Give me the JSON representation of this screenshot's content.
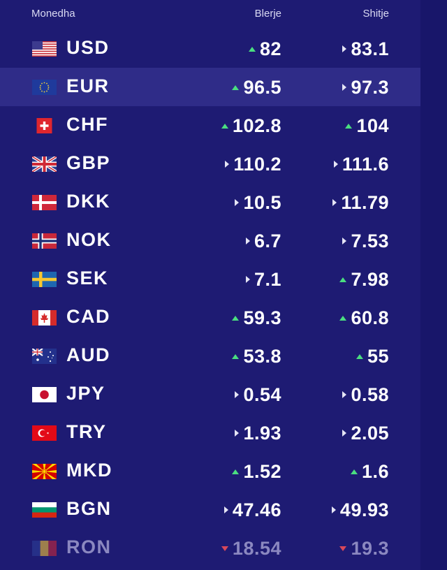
{
  "header": {
    "currency": "Monedha",
    "buy": "Blerje",
    "sell": "Shitje"
  },
  "colors": {
    "up": "#4ade80",
    "down": "#d9485a",
    "flat": "#e5e5f5",
    "highlight": "#2f2c88"
  },
  "rows": [
    {
      "code": "USD",
      "flag": "usa-flag-icon",
      "buy": "82",
      "buy_trend": "up",
      "sell": "83.1",
      "sell_trend": "flat"
    },
    {
      "code": "EUR",
      "flag": "eu-flag-icon",
      "buy": "96.5",
      "buy_trend": "up",
      "sell": "97.3",
      "sell_trend": "flat"
    },
    {
      "code": "CHF",
      "flag": "switzerland-flag-icon",
      "buy": "102.8",
      "buy_trend": "up",
      "sell": "104",
      "sell_trend": "up"
    },
    {
      "code": "GBP",
      "flag": "uk-flag-icon",
      "buy": "110.2",
      "buy_trend": "flat",
      "sell": "111.6",
      "sell_trend": "flat"
    },
    {
      "code": "DKK",
      "flag": "denmark-flag-icon",
      "buy": "10.5",
      "buy_trend": "flat",
      "sell": "11.79",
      "sell_trend": "flat"
    },
    {
      "code": "NOK",
      "flag": "norway-flag-icon",
      "buy": "6.7",
      "buy_trend": "flat",
      "sell": "7.53",
      "sell_trend": "flat"
    },
    {
      "code": "SEK",
      "flag": "sweden-flag-icon",
      "buy": "7.1",
      "buy_trend": "flat",
      "sell": "7.98",
      "sell_trend": "up"
    },
    {
      "code": "CAD",
      "flag": "canada-flag-icon",
      "buy": "59.3",
      "buy_trend": "up",
      "sell": "60.8",
      "sell_trend": "up"
    },
    {
      "code": "AUD",
      "flag": "australia-flag-icon",
      "buy": "53.8",
      "buy_trend": "up",
      "sell": "55",
      "sell_trend": "up"
    },
    {
      "code": "JPY",
      "flag": "japan-flag-icon",
      "buy": "0.54",
      "buy_trend": "flat",
      "sell": "0.58",
      "sell_trend": "flat"
    },
    {
      "code": "TRY",
      "flag": "turkey-flag-icon",
      "buy": "1.93",
      "buy_trend": "flat",
      "sell": "2.05",
      "sell_trend": "flat"
    },
    {
      "code": "MKD",
      "flag": "north-macedonia-flag-icon",
      "buy": "1.52",
      "buy_trend": "up",
      "sell": "1.6",
      "sell_trend": "up"
    },
    {
      "code": "BGN",
      "flag": "bulgaria-flag-icon",
      "buy": "47.46",
      "buy_trend": "flat",
      "sell": "49.93",
      "sell_trend": "flat"
    },
    {
      "code": "RON",
      "flag": "romania-flag-icon",
      "buy": "18.54",
      "buy_trend": "down",
      "sell": "19.3",
      "sell_trend": "down"
    }
  ]
}
